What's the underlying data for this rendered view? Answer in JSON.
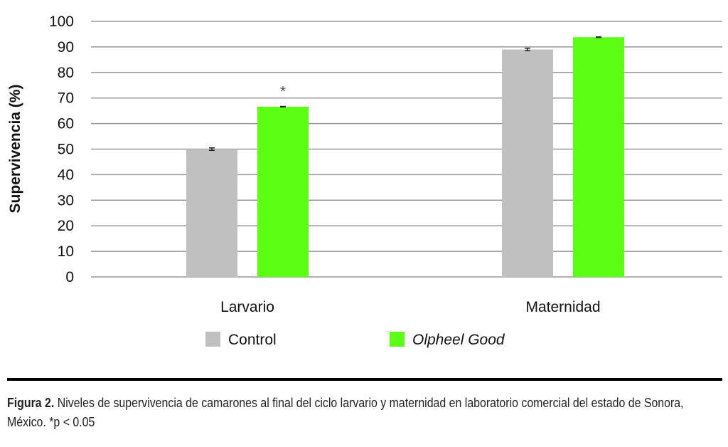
{
  "chart_data": {
    "type": "bar",
    "title": "",
    "xlabel": "",
    "ylabel": "Supervivencia (%)",
    "ylim": [
      0,
      100
    ],
    "yticks": [
      0,
      10,
      20,
      30,
      40,
      50,
      60,
      70,
      80,
      90,
      100
    ],
    "grid": true,
    "categories": [
      "Larvario",
      "Maternidad"
    ],
    "series": [
      {
        "name": "Control",
        "italic": false,
        "color": "#c0c0c0",
        "values": [
          50.0,
          89.0
        ],
        "errors": [
          0.5,
          0.5
        ]
      },
      {
        "name": "Olpheel Good",
        "italic": true,
        "color": "#5cff13",
        "values": [
          66.6,
          93.8
        ],
        "errors": [
          0.1,
          0.1
        ]
      }
    ],
    "annotations": [
      {
        "text": "*",
        "category": "Larvario",
        "series": "Olpheel Good",
        "y": 74
      }
    ],
    "legend_position": "bottom"
  },
  "caption": {
    "label": "Figura 2.",
    "text": " Niveles de supervivencia de camarones al final del ciclo larvario y maternidad en laboratorio comercial del estado de Sonora, México. *p < 0.05"
  }
}
